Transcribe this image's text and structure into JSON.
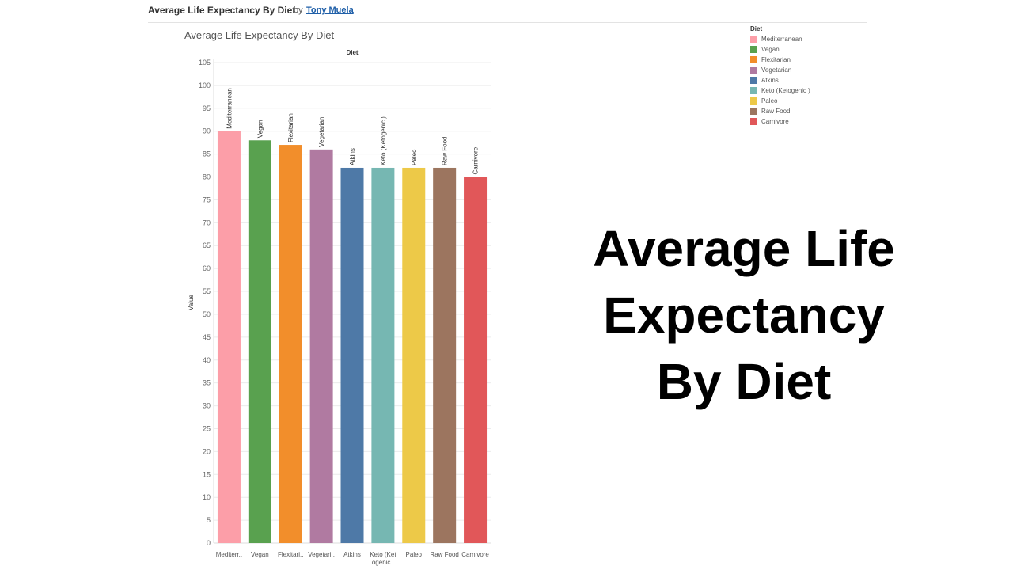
{
  "header": {
    "title": "Average Life Expectancy By Diet",
    "by": "by",
    "author": "Tony Muela"
  },
  "chart_title": "Average Life Expectancy By Diet",
  "big_title": [
    "Average Life",
    "Expectancy",
    "By Diet"
  ],
  "legend": {
    "title": "Diet",
    "items": [
      {
        "label": "Mediterranean",
        "color": "#fc9ea8"
      },
      {
        "label": "Vegan",
        "color": "#59a14f"
      },
      {
        "label": "Flexitarian",
        "color": "#f28e2b"
      },
      {
        "label": "Vegetarian",
        "color": "#b07aa1"
      },
      {
        "label": "Atkins",
        "color": "#4e79a7"
      },
      {
        "label": "Keto (Ketogenic )",
        "color": "#76b7b2"
      },
      {
        "label": "Paleo",
        "color": "#edc948"
      },
      {
        "label": "Raw Food",
        "color": "#9c755f"
      },
      {
        "label": "Carnivore",
        "color": "#e15759"
      }
    ]
  },
  "chart_data": {
    "type": "bar",
    "column_header": "Diet",
    "ylabel": "Value",
    "ylim": [
      0,
      105
    ],
    "yticks": [
      0,
      5,
      10,
      15,
      20,
      25,
      30,
      35,
      40,
      45,
      50,
      55,
      60,
      65,
      70,
      75,
      80,
      85,
      90,
      95,
      100,
      105
    ],
    "grid": true,
    "categories": [
      "Mediterranean",
      "Vegan",
      "Flexitarian",
      "Vegetarian",
      "Atkins",
      "Keto (Ketogenic )",
      "Paleo",
      "Raw Food",
      "Carnivore"
    ],
    "axis_labels": [
      [
        "Mediterr.."
      ],
      [
        "Vegan"
      ],
      [
        "Flexitari.."
      ],
      [
        "Vegetari.."
      ],
      [
        "Atkins"
      ],
      [
        "Keto (Ket",
        "ogenic.."
      ],
      [
        "Paleo"
      ],
      [
        "Raw Food"
      ],
      [
        "Carnivore"
      ]
    ],
    "bar_labels": [
      "Mediterranean",
      "Vegan",
      "Flexitarian",
      "Vegetarian",
      "Atkins",
      "Keto (Ketogenic )",
      "Paleo",
      "Raw Food",
      "Carnivore"
    ],
    "values": [
      90,
      88,
      87,
      86,
      82,
      82,
      82,
      82,
      80
    ],
    "colors": [
      "#fc9ea8",
      "#59a14f",
      "#f28e2b",
      "#b07aa1",
      "#4e79a7",
      "#76b7b2",
      "#edc948",
      "#9c755f",
      "#e15759"
    ]
  }
}
